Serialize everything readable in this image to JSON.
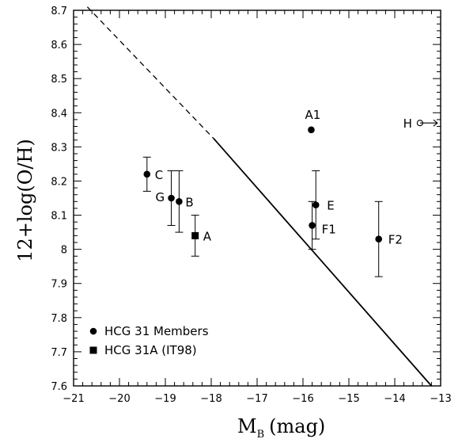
{
  "chart_data": {
    "type": "scatter",
    "xlabel_main": "M",
    "xlabel_sub": "B",
    "xlabel_unit": "(mag)",
    "ylabel": "12+log(O/H)",
    "xlim": [
      -21,
      -13
    ],
    "ylim": [
      7.6,
      8.7
    ],
    "x_ticks": [
      "−21",
      "−20",
      "−19",
      "−18",
      "−17",
      "−16",
      "−15",
      "−14",
      "−13"
    ],
    "y_ticks": [
      "7.6",
      "7.7",
      "7.8",
      "7.9",
      "8",
      "8.1",
      "8.2",
      "8.3",
      "8.4",
      "8.5",
      "8.6",
      "8.7"
    ],
    "series": [
      {
        "name": "HCG 31 Members",
        "marker": "circle",
        "points": [
          {
            "label": "A1",
            "x": -15.82,
            "y": 8.35,
            "err": null
          },
          {
            "label": "C",
            "x": -19.4,
            "y": 8.22,
            "err": 0.05
          },
          {
            "label": "G",
            "x": -18.87,
            "y": 8.15,
            "err": 0.08
          },
          {
            "label": "B",
            "x": -18.7,
            "y": 8.14,
            "err": 0.09
          },
          {
            "label": "E",
            "x": -15.72,
            "y": 8.13,
            "err": 0.1
          },
          {
            "label": "F1",
            "x": -15.8,
            "y": 8.07,
            "err": 0.07
          },
          {
            "label": "F2",
            "x": -14.35,
            "y": 8.03,
            "err": 0.11
          }
        ]
      },
      {
        "name": "HCG 31A (IT98)",
        "marker": "square",
        "points": [
          {
            "label": "A",
            "x": -18.35,
            "y": 8.04,
            "err": 0.06
          }
        ]
      }
    ],
    "limit_points": [
      {
        "label": "H",
        "x": -13.45,
        "y": 8.37,
        "direction": "right"
      }
    ],
    "line": {
      "x_start": -20.7,
      "y_start": 8.71,
      "x_dash_end": -17.95,
      "y_dash_end": 8.325,
      "x_end": -13.2,
      "y_end": 7.6
    },
    "legend_position": "bottom-left"
  }
}
